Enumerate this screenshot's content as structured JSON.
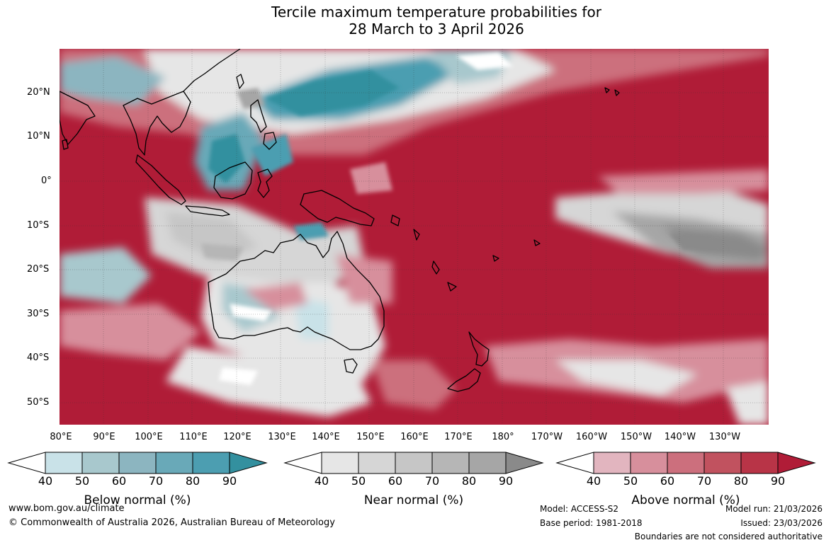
{
  "title": {
    "line1": "Tercile maximum temperature probabilities for",
    "line2": "28 March to 3 April 2026"
  },
  "map": {
    "lat_labels": [
      "20°N",
      "10°N",
      "0°",
      "10°S",
      "20°S",
      "30°S",
      "40°S",
      "50°S"
    ],
    "lon_labels": [
      "80°E",
      "90°E",
      "100°E",
      "110°E",
      "120°E",
      "130°E",
      "140°E",
      "150°E",
      "160°E",
      "170°E",
      "180°",
      "170°W",
      "160°W",
      "150°W",
      "140°W",
      "130°W"
    ],
    "colors": {
      "above": [
        "#e2b5bf",
        "#d78f9c",
        "#cc6f7d",
        "#c1525f",
        "#b83447",
        "#b01c37"
      ],
      "near": [
        "#e6e6e6",
        "#d6d6d6",
        "#c6c6c6",
        "#b6b6b6",
        "#a6a6a6",
        "#8a8a8a"
      ],
      "below": [
        "#c9e2e8",
        "#a8c8cd",
        "#8cb5c0",
        "#69a9b8",
        "#4c9eb1",
        "#33909f"
      ]
    }
  },
  "legend": {
    "below": {
      "label": "Below normal (%)",
      "ticks": [
        "40",
        "50",
        "60",
        "70",
        "80",
        "90"
      ],
      "colors": [
        "#c9e2e8",
        "#a8c8cd",
        "#8cb5c0",
        "#69a9b8",
        "#4c9eb1",
        "#33909f"
      ]
    },
    "near": {
      "label": "Near normal (%)",
      "ticks": [
        "40",
        "50",
        "60",
        "70",
        "80",
        "90"
      ],
      "colors": [
        "#e6e6e6",
        "#d6d6d6",
        "#c6c6c6",
        "#b6b6b6",
        "#a6a6a6",
        "#8a8a8a"
      ]
    },
    "above": {
      "label": "Above normal (%)",
      "ticks": [
        "40",
        "50",
        "60",
        "70",
        "80",
        "90"
      ],
      "colors": [
        "#e2b5bf",
        "#d78f9c",
        "#cc6f7d",
        "#c1525f",
        "#b83447",
        "#b01c37"
      ]
    }
  },
  "footer": {
    "website": "www.bom.gov.au/climate",
    "copyright": "© Commonwealth of Australia 2026, Australian Bureau of Meteorology",
    "model": "Model: ACCESS-S2",
    "base_period": "Base period: 1981-2018",
    "model_run": "Model run: 21/03/2026",
    "issued": "Issued: 23/03/2026",
    "disclaimer": "Boundaries are not considered authoritative"
  }
}
